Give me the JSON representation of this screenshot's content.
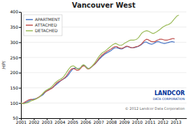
{
  "chart_data": {
    "type": "line",
    "title": "Vancouver West",
    "y_label": "HPI",
    "xlim": [
      2001,
      2013.83
    ],
    "xticks": [
      2001,
      2002,
      2003,
      2004,
      2005,
      2006,
      2007,
      2008,
      2009,
      2010,
      2011,
      2012,
      2013
    ],
    "ylim": [
      50,
      400
    ],
    "yticks": [
      50,
      100,
      150,
      200,
      250,
      300,
      350,
      400
    ],
    "grid": true,
    "legend": "upper left",
    "annotations": [
      "LANDCOR",
      "DATA CORPORATION",
      "© 2012 Landcor Data Corporation"
    ],
    "series": [
      {
        "name": "APARTMENT",
        "color": "#4472c4",
        "x": [
          2001,
          2001.0833,
          2001.1667,
          2001.25,
          2001.3333,
          2001.4167,
          2001.5,
          2001.5833,
          2001.6667,
          2001.75,
          2001.8333,
          2001.9167,
          2002,
          2002.0833,
          2002.1667,
          2002.25,
          2002.3333,
          2002.4167,
          2002.5,
          2002.5833,
          2002.6667,
          2002.75,
          2002.8333,
          2002.9167,
          2003,
          2003.0833,
          2003.1667,
          2003.25,
          2003.3333,
          2003.4167,
          2003.5,
          2003.5833,
          2003.6667,
          2003.75,
          2003.8333,
          2003.9167,
          2004,
          2004.0833,
          2004.1667,
          2004.25,
          2004.3333,
          2004.4167,
          2004.5,
          2004.5833,
          2004.6667,
          2004.75,
          2004.8333,
          2004.9167,
          2005,
          2005.0833,
          2005.1667,
          2005.25,
          2005.3333,
          2005.4167,
          2005.5,
          2005.5833,
          2005.6667,
          2005.75,
          2005.8333,
          2005.9167,
          2006,
          2006.0833,
          2006.1667,
          2006.25,
          2006.3333,
          2006.4167,
          2006.5,
          2006.5833,
          2006.6667,
          2006.75,
          2006.8333,
          2006.9167,
          2007,
          2007.0833,
          2007.1667,
          2007.25,
          2007.3333,
          2007.4167,
          2007.5,
          2007.5833,
          2007.6667,
          2007.75,
          2007.8333,
          2007.9167,
          2008,
          2008.0833,
          2008.1667,
          2008.25,
          2008.3333,
          2008.4167,
          2008.5,
          2008.5833,
          2008.6667,
          2008.75,
          2008.8333,
          2008.9167,
          2009,
          2009.0833,
          2009.1667,
          2009.25,
          2009.3333,
          2009.4167,
          2009.5,
          2009.5833,
          2009.6667,
          2009.75,
          2009.8333,
          2009.9167,
          2010,
          2010.0833,
          2010.1667,
          2010.25,
          2010.3333,
          2010.4167,
          2010.5,
          2010.5833,
          2010.6667,
          2010.75,
          2010.8333,
          2010.9167,
          2011,
          2011.0833,
          2011.1667,
          2011.25,
          2011.3333,
          2011.4167,
          2011.5,
          2011.5833,
          2011.6667,
          2011.75,
          2011.8333,
          2011.9167,
          2012,
          2012.0833,
          2012.1667,
          2012.25,
          2012.3333,
          2012.4167,
          2012.5,
          2012.5833,
          2012.6667,
          2012.75,
          2012.8333,
          2012.9167
        ],
        "values": [
          100,
          99,
          99,
          100,
          101,
          102,
          104,
          106,
          108,
          110,
          111,
          112,
          113,
          114,
          115,
          116,
          118,
          120,
          122,
          124,
          126,
          129,
          133,
          137,
          140,
          142,
          144,
          146,
          148,
          150,
          152,
          155,
          158,
          161,
          164,
          167,
          170,
          173,
          176,
          178,
          180,
          182,
          185,
          188,
          192,
          197,
          202,
          207,
          211,
          214,
          215,
          215,
          214,
          213,
          213,
          215,
          218,
          222,
          224,
          224,
          222,
          218,
          215,
          213,
          214,
          217,
          220,
          223,
          226,
          229,
          233,
          237,
          241,
          245,
          248,
          252,
          255,
          258,
          261,
          263,
          265,
          267,
          269,
          271,
          273,
          276,
          279,
          281,
          282,
          282,
          281,
          280,
          279,
          278,
          278,
          280,
          282,
          284,
          285,
          286,
          285,
          284,
          283,
          282,
          282,
          282,
          283,
          284,
          285,
          286,
          288,
          290,
          292,
          295,
          298,
          300,
          301,
          300,
          298,
          296,
          295,
          294,
          294,
          295,
          297,
          299,
          301,
          302,
          302,
          301,
          299,
          298,
          297,
          296,
          296,
          297,
          298,
          299,
          300,
          301,
          302,
          302,
          301,
          300
        ]
      },
      {
        "name": "ATTACHED",
        "color": "#c0504d",
        "x": [
          2001,
          2001.0833,
          2001.1667,
          2001.25,
          2001.3333,
          2001.4167,
          2001.5,
          2001.5833,
          2001.6667,
          2001.75,
          2001.8333,
          2001.9167,
          2002,
          2002.0833,
          2002.1667,
          2002.25,
          2002.3333,
          2002.4167,
          2002.5,
          2002.5833,
          2002.6667,
          2002.75,
          2002.8333,
          2002.9167,
          2003,
          2003.0833,
          2003.1667,
          2003.25,
          2003.3333,
          2003.4167,
          2003.5,
          2003.5833,
          2003.6667,
          2003.75,
          2003.8333,
          2003.9167,
          2004,
          2004.0833,
          2004.1667,
          2004.25,
          2004.3333,
          2004.4167,
          2004.5,
          2004.5833,
          2004.6667,
          2004.75,
          2004.8333,
          2004.9167,
          2005,
          2005.0833,
          2005.1667,
          2005.25,
          2005.3333,
          2005.4167,
          2005.5,
          2005.5833,
          2005.6667,
          2005.75,
          2005.8333,
          2005.9167,
          2006,
          2006.0833,
          2006.1667,
          2006.25,
          2006.3333,
          2006.4167,
          2006.5,
          2006.5833,
          2006.6667,
          2006.75,
          2006.8333,
          2006.9167,
          2007,
          2007.0833,
          2007.1667,
          2007.25,
          2007.3333,
          2007.4167,
          2007.5,
          2007.5833,
          2007.6667,
          2007.75,
          2007.8333,
          2007.9167,
          2008,
          2008.0833,
          2008.1667,
          2008.25,
          2008.3333,
          2008.4167,
          2008.5,
          2008.5833,
          2008.6667,
          2008.75,
          2008.8333,
          2008.9167,
          2009,
          2009.0833,
          2009.1667,
          2009.25,
          2009.3333,
          2009.4167,
          2009.5,
          2009.5833,
          2009.6667,
          2009.75,
          2009.8333,
          2009.9167,
          2010,
          2010.0833,
          2010.1667,
          2010.25,
          2010.3333,
          2010.4167,
          2010.5,
          2010.5833,
          2010.6667,
          2010.75,
          2010.8333,
          2010.9167,
          2011,
          2011.0833,
          2011.1667,
          2011.25,
          2011.3333,
          2011.4167,
          2011.5,
          2011.5833,
          2011.6667,
          2011.75,
          2011.8333,
          2011.9167,
          2012,
          2012.0833,
          2012.1667,
          2012.25,
          2012.3333,
          2012.4167,
          2012.5,
          2012.5833,
          2012.6667,
          2012.75,
          2012.8333,
          2012.9167
        ],
        "values": [
          100,
          99,
          100,
          101,
          104,
          106,
          108,
          110,
          111,
          112,
          112,
          111,
          111,
          112,
          114,
          116,
          118,
          120,
          123,
          126,
          129,
          132,
          135,
          137,
          139,
          141,
          143,
          145,
          147,
          149,
          153,
          157,
          161,
          165,
          168,
          170,
          172,
          174,
          176,
          178,
          181,
          184,
          188,
          193,
          198,
          204,
          208,
          212,
          213,
          213,
          212,
          210,
          208,
          208,
          209,
          212,
          216,
          220,
          222,
          222,
          219,
          215,
          212,
          212,
          214,
          217,
          220,
          223,
          226,
          230,
          234,
          238,
          243,
          248,
          252,
          256,
          259,
          262,
          265,
          267,
          270,
          272,
          274,
          276,
          278,
          281,
          283,
          285,
          286,
          286,
          284,
          282,
          281,
          280,
          280,
          281,
          283,
          285,
          287,
          287,
          286,
          284,
          283,
          282,
          282,
          283,
          284,
          285,
          286,
          287,
          289,
          291,
          294,
          298,
          302,
          306,
          308,
          310,
          309,
          307,
          305,
          303,
          302,
          302,
          302,
          303,
          305,
          307,
          308,
          310,
          310,
          310,
          309,
          308,
          307,
          307,
          307,
          308,
          309,
          310,
          311,
          312,
          312,
          311
        ]
      },
      {
        "name": "DETACHED",
        "color": "#9bbb59",
        "x": [
          2001,
          2001.0833,
          2001.1667,
          2001.25,
          2001.3333,
          2001.4167,
          2001.5,
          2001.5833,
          2001.6667,
          2001.75,
          2001.8333,
          2001.9167,
          2002,
          2002.0833,
          2002.1667,
          2002.25,
          2002.3333,
          2002.4167,
          2002.5,
          2002.5833,
          2002.6667,
          2002.75,
          2002.8333,
          2002.9167,
          2003,
          2003.0833,
          2003.1667,
          2003.25,
          2003.3333,
          2003.4167,
          2003.5,
          2003.5833,
          2003.6667,
          2003.75,
          2003.8333,
          2003.9167,
          2004,
          2004.0833,
          2004.1667,
          2004.25,
          2004.3333,
          2004.4167,
          2004.5,
          2004.5833,
          2004.6667,
          2004.75,
          2004.8333,
          2004.9167,
          2005,
          2005.0833,
          2005.1667,
          2005.25,
          2005.3333,
          2005.4167,
          2005.5,
          2005.5833,
          2005.6667,
          2005.75,
          2005.8333,
          2005.9167,
          2006,
          2006.0833,
          2006.1667,
          2006.25,
          2006.3333,
          2006.4167,
          2006.5,
          2006.5833,
          2006.6667,
          2006.75,
          2006.8333,
          2006.9167,
          2007,
          2007.0833,
          2007.1667,
          2007.25,
          2007.3333,
          2007.4167,
          2007.5,
          2007.5833,
          2007.6667,
          2007.75,
          2007.8333,
          2007.9167,
          2008,
          2008.0833,
          2008.1667,
          2008.25,
          2008.3333,
          2008.4167,
          2008.5,
          2008.5833,
          2008.6667,
          2008.75,
          2008.8333,
          2008.9167,
          2009,
          2009.0833,
          2009.1667,
          2009.25,
          2009.3333,
          2009.4167,
          2009.5,
          2009.5833,
          2009.6667,
          2009.75,
          2009.8333,
          2009.9167,
          2010,
          2010.0833,
          2010.1667,
          2010.25,
          2010.3333,
          2010.4167,
          2010.5,
          2010.5833,
          2010.6667,
          2010.75,
          2010.8333,
          2010.9167,
          2011,
          2011.0833,
          2011.1667,
          2011.25,
          2011.3333,
          2011.4167,
          2011.5,
          2011.5833,
          2011.6667,
          2011.75,
          2011.8333,
          2011.9167,
          2012,
          2012.0833,
          2012.1667,
          2012.25,
          2012.3333,
          2012.4167,
          2012.5,
          2012.5833,
          2012.6667,
          2012.75,
          2012.8333,
          2012.9167,
          2013,
          2013.0833,
          2013.1667,
          2013.25
        ],
        "values": [
          100,
          99,
          98,
          98,
          99,
          100,
          101,
          102,
          104,
          106,
          108,
          109,
          110,
          112,
          113,
          115,
          117,
          119,
          122,
          126,
          130,
          134,
          138,
          141,
          143,
          145,
          147,
          149,
          152,
          155,
          159,
          163,
          167,
          170,
          173,
          175,
          177,
          179,
          181,
          184,
          188,
          193,
          198,
          204,
          209,
          214,
          218,
          221,
          222,
          222,
          220,
          217,
          214,
          212,
          212,
          215,
          219,
          224,
          226,
          225,
          221,
          217,
          213,
          213,
          215,
          218,
          221,
          225,
          229,
          234,
          239,
          245,
          250,
          255,
          259,
          263,
          266,
          268,
          270,
          273,
          276,
          279,
          282,
          285,
          288,
          291,
          293,
          295,
          296,
          295,
          293,
          291,
          290,
          290,
          291,
          293,
          296,
          298,
          300,
          302,
          304,
          306,
          307,
          307,
          307,
          307,
          308,
          309,
          311,
          314,
          318,
          323,
          328,
          332,
          334,
          336,
          337,
          338,
          337,
          336,
          334,
          332,
          330,
          329,
          330,
          332,
          334,
          336,
          339,
          341,
          344,
          347,
          350,
          352,
          354,
          356,
          357,
          358,
          360,
          362,
          365,
          369,
          374,
          378,
          382,
          386,
          388,
          389
        ]
      }
    ]
  }
}
